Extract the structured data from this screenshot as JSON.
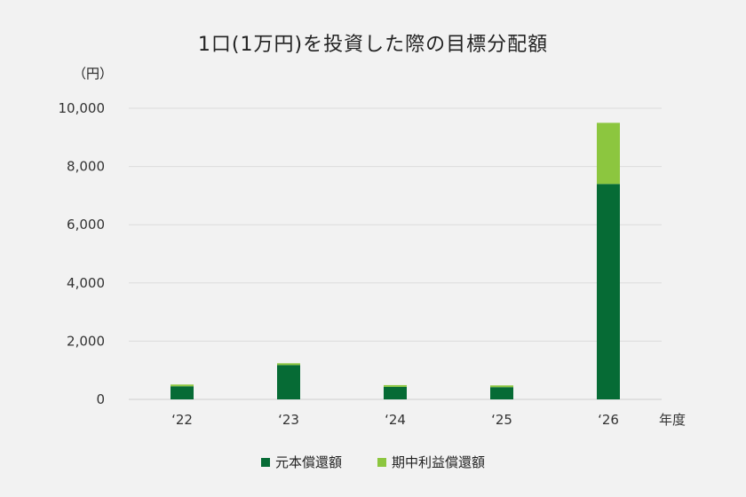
{
  "chart_data": {
    "type": "bar",
    "stacked": true,
    "title": "1口(1万円)を投資した際の目標分配額",
    "unit_label": "（円）",
    "xlabel": "年度",
    "categories": [
      "‘22",
      "‘23",
      "‘24",
      "‘25",
      "‘26"
    ],
    "series": [
      {
        "name": "元本償還額",
        "color": "#066b35",
        "values": [
          450,
          1180,
          430,
          420,
          7400
        ]
      },
      {
        "name": "期中利益償還額",
        "color": "#8cc63f",
        "values": [
          60,
          60,
          60,
          60,
          2100
        ]
      }
    ],
    "ylim": [
      0,
      10000
    ],
    "yticks": [
      "10,000",
      "8,000",
      "6,000",
      "4,000",
      "2,000",
      "0"
    ],
    "ytick_values": [
      10000,
      8000,
      6000,
      4000,
      2000,
      0
    ],
    "grid": true,
    "legend_position": "bottom"
  }
}
